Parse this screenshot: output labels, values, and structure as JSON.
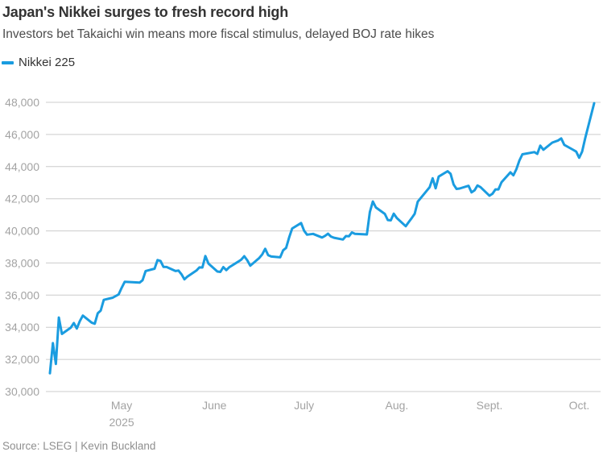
{
  "header": {
    "title": "Japan's Nikkei surges to fresh record high",
    "subtitle": "Investors bet Takaichi win means more fiscal stimulus, delayed BOJ rate hikes"
  },
  "legend": {
    "label": "Nikkei 225"
  },
  "footer": {
    "source": "Source: LSEG | Kevin Buckland"
  },
  "colors": {
    "line": "#1a9ce0",
    "grid": "#cccccc",
    "tick_label": "#a3a3a3",
    "title": "#333333",
    "subtitle": "#4c4c4c",
    "source": "#8f8f8f"
  },
  "chart_data": {
    "type": "line",
    "title": "Japan's Nikkei surges to fresh record high",
    "xlabel": "",
    "ylabel": "",
    "ylim": [
      30000,
      48000
    ],
    "grid": "horizontal gridlines on, no axis lines",
    "legend_position": "top-left",
    "y_ticks": [
      30000,
      32000,
      34000,
      36000,
      38000,
      40000,
      42000,
      44000,
      46000,
      48000
    ],
    "x_range": [
      "2025-04-07",
      "2025-10-06"
    ],
    "x_ticks": [
      {
        "date": "2025-05-01",
        "label": "May",
        "sublabel": "2025"
      },
      {
        "date": "2025-06-01",
        "label": "June"
      },
      {
        "date": "2025-07-01",
        "label": "July"
      },
      {
        "date": "2025-08-01",
        "label": "Aug."
      },
      {
        "date": "2025-09-01",
        "label": "Sept."
      },
      {
        "date": "2025-10-01",
        "label": "Oct."
      }
    ],
    "series": [
      {
        "name": "Nikkei 225",
        "color": "#1a9ce0",
        "points": [
          [
            "2025-04-07",
            31136
          ],
          [
            "2025-04-08",
            33013
          ],
          [
            "2025-04-09",
            31714
          ],
          [
            "2025-04-10",
            34609
          ],
          [
            "2025-04-11",
            33586
          ],
          [
            "2025-04-14",
            33982
          ],
          [
            "2025-04-15",
            34268
          ],
          [
            "2025-04-16",
            33920
          ],
          [
            "2025-04-17",
            34377
          ],
          [
            "2025-04-18",
            34730
          ],
          [
            "2025-04-21",
            34280
          ],
          [
            "2025-04-22",
            34220
          ],
          [
            "2025-04-23",
            34868
          ],
          [
            "2025-04-24",
            35039
          ],
          [
            "2025-04-25",
            35706
          ],
          [
            "2025-04-28",
            35840
          ],
          [
            "2025-04-30",
            36045
          ],
          [
            "2025-05-01",
            36452
          ],
          [
            "2025-05-02",
            36831
          ],
          [
            "2025-05-07",
            36779
          ],
          [
            "2025-05-08",
            36928
          ],
          [
            "2025-05-09",
            37503
          ],
          [
            "2025-05-12",
            37644
          ],
          [
            "2025-05-13",
            38183
          ],
          [
            "2025-05-14",
            38128
          ],
          [
            "2025-05-15",
            37755
          ],
          [
            "2025-05-16",
            37754
          ],
          [
            "2025-05-19",
            37499
          ],
          [
            "2025-05-20",
            37529
          ],
          [
            "2025-05-21",
            37299
          ],
          [
            "2025-05-22",
            36986
          ],
          [
            "2025-05-23",
            37160
          ],
          [
            "2025-05-26",
            37532
          ],
          [
            "2025-05-27",
            37724
          ],
          [
            "2025-05-28",
            37722
          ],
          [
            "2025-05-29",
            38433
          ],
          [
            "2025-05-30",
            37965
          ],
          [
            "2025-06-02",
            37471
          ],
          [
            "2025-06-03",
            37447
          ],
          [
            "2025-06-04",
            37747
          ],
          [
            "2025-06-05",
            37554
          ],
          [
            "2025-06-06",
            37742
          ],
          [
            "2025-06-09",
            38088
          ],
          [
            "2025-06-10",
            38211
          ],
          [
            "2025-06-11",
            38421
          ],
          [
            "2025-06-12",
            38173
          ],
          [
            "2025-06-13",
            37834
          ],
          [
            "2025-06-16",
            38311
          ],
          [
            "2025-06-17",
            38536
          ],
          [
            "2025-06-18",
            38885
          ],
          [
            "2025-06-19",
            38488
          ],
          [
            "2025-06-20",
            38403
          ],
          [
            "2025-06-23",
            38354
          ],
          [
            "2025-06-24",
            38790
          ],
          [
            "2025-06-25",
            38942
          ],
          [
            "2025-06-26",
            39584
          ],
          [
            "2025-06-27",
            40150
          ],
          [
            "2025-06-30",
            40487
          ],
          [
            "2025-07-01",
            40012
          ],
          [
            "2025-07-02",
            39762
          ],
          [
            "2025-07-03",
            39786
          ],
          [
            "2025-07-04",
            39811
          ],
          [
            "2025-07-07",
            39588
          ],
          [
            "2025-07-08",
            39688
          ],
          [
            "2025-07-09",
            39821
          ],
          [
            "2025-07-10",
            39646
          ],
          [
            "2025-07-11",
            39570
          ],
          [
            "2025-07-14",
            39460
          ],
          [
            "2025-07-15",
            39678
          ],
          [
            "2025-07-16",
            39663
          ],
          [
            "2025-07-17",
            39901
          ],
          [
            "2025-07-18",
            39819
          ],
          [
            "2025-07-22",
            39775
          ],
          [
            "2025-07-23",
            41171
          ],
          [
            "2025-07-24",
            41826
          ],
          [
            "2025-07-25",
            41456
          ],
          [
            "2025-07-28",
            41057
          ],
          [
            "2025-07-29",
            40675
          ],
          [
            "2025-07-30",
            40654
          ],
          [
            "2025-07-31",
            41070
          ],
          [
            "2025-08-01",
            40800
          ],
          [
            "2025-08-04",
            40290
          ],
          [
            "2025-08-05",
            40550
          ],
          [
            "2025-08-06",
            40795
          ],
          [
            "2025-08-07",
            41059
          ],
          [
            "2025-08-08",
            41820
          ],
          [
            "2025-08-12",
            42718
          ],
          [
            "2025-08-13",
            43274
          ],
          [
            "2025-08-14",
            42650
          ],
          [
            "2025-08-15",
            43378
          ],
          [
            "2025-08-18",
            43714
          ],
          [
            "2025-08-19",
            43546
          ],
          [
            "2025-08-20",
            42889
          ],
          [
            "2025-08-21",
            42610
          ],
          [
            "2025-08-22",
            42633
          ],
          [
            "2025-08-25",
            42808
          ],
          [
            "2025-08-26",
            42394
          ],
          [
            "2025-08-27",
            42520
          ],
          [
            "2025-08-28",
            42828
          ],
          [
            "2025-08-29",
            42718
          ],
          [
            "2025-09-01",
            42188
          ],
          [
            "2025-09-02",
            42310
          ],
          [
            "2025-09-03",
            42580
          ],
          [
            "2025-09-04",
            42581
          ],
          [
            "2025-09-05",
            43019
          ],
          [
            "2025-09-08",
            43643
          ],
          [
            "2025-09-09",
            43459
          ],
          [
            "2025-09-10",
            43837
          ],
          [
            "2025-09-11",
            44372
          ],
          [
            "2025-09-12",
            44768
          ],
          [
            "2025-09-16",
            44902
          ],
          [
            "2025-09-17",
            44790
          ],
          [
            "2025-09-18",
            45303
          ],
          [
            "2025-09-19",
            45045
          ],
          [
            "2025-09-22",
            45494
          ],
          [
            "2025-09-24",
            45630
          ],
          [
            "2025-09-25",
            45754
          ],
          [
            "2025-09-26",
            45355
          ],
          [
            "2025-09-29",
            45044
          ],
          [
            "2025-09-30",
            44933
          ],
          [
            "2025-10-01",
            44551
          ],
          [
            "2025-10-02",
            44936
          ],
          [
            "2025-10-03",
            45770
          ],
          [
            "2025-10-06",
            47945
          ]
        ]
      }
    ]
  }
}
